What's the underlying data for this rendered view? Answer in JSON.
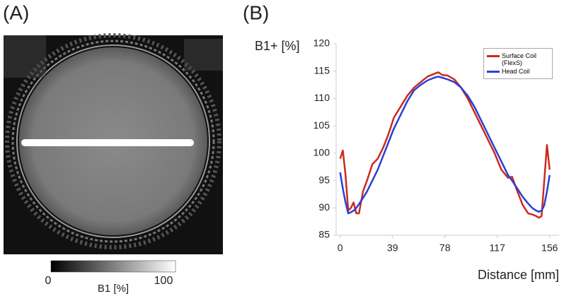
{
  "panels": {
    "a": "(A)",
    "b": "(B)"
  },
  "colorbar": {
    "min": 0,
    "max": 100,
    "label": "B1 [%]"
  },
  "chart_data": {
    "type": "line",
    "y_label": "B1+ [%]",
    "x_label": "Distance [mm]",
    "x": [
      0,
      2,
      4,
      6,
      8,
      10,
      12,
      14,
      17,
      20,
      24,
      28,
      32,
      36,
      40,
      45,
      50,
      55,
      60,
      65,
      70,
      73,
      76,
      80,
      85,
      90,
      95,
      100,
      105,
      110,
      115,
      120,
      125,
      128,
      132,
      136,
      140,
      143,
      146,
      148,
      150,
      152,
      154,
      156
    ],
    "series": [
      {
        "name": "Surface Coil (FlexS)",
        "color": "#cc2a1e",
        "values": [
          99,
          100.5,
          96,
          89.5,
          90,
          91,
          89,
          89,
          93,
          95,
          98,
          99,
          101,
          103.5,
          106.5,
          108.5,
          110.5,
          112,
          113,
          114,
          114.5,
          114.8,
          114.3,
          114.2,
          113.5,
          112,
          110,
          107.5,
          105,
          102.5,
          100,
          97,
          95.5,
          95.7,
          93,
          90.5,
          89,
          88.8,
          88.5,
          88.2,
          88.5,
          95,
          101.5,
          97
        ]
      },
      {
        "name": "Head Coil",
        "color": "#2b3fd6",
        "values": [
          96.5,
          93.5,
          91,
          89,
          89.2,
          89.5,
          90,
          90.7,
          91.8,
          93,
          95,
          97,
          99.5,
          102,
          104.5,
          107,
          109.5,
          111.5,
          112.5,
          113.3,
          113.8,
          114,
          113.8,
          113.5,
          113,
          112,
          110.5,
          108.5,
          106,
          103.5,
          101,
          98.5,
          96,
          95,
          93.5,
          92,
          90.8,
          90,
          89.5,
          89.3,
          89.5,
          90.5,
          93,
          96
        ]
      }
    ],
    "xlim": [
      -3,
      163
    ],
    "ylim": [
      85,
      120
    ],
    "xticks": [
      0,
      39,
      78,
      117,
      156
    ],
    "yticks": [
      85,
      90,
      95,
      100,
      105,
      110,
      115,
      120
    ],
    "grid": false,
    "legend": "upper right"
  }
}
